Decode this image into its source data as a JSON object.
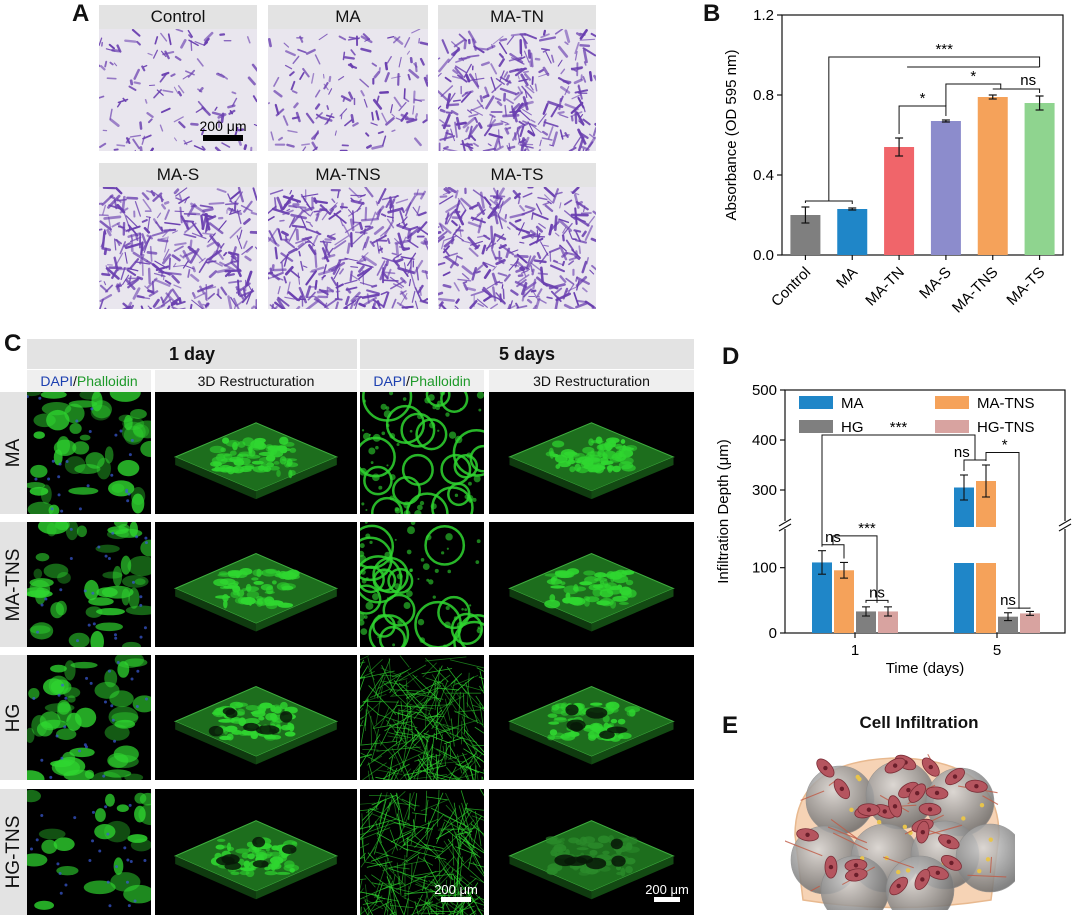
{
  "panel_letters": {
    "a": "A",
    "b": "B",
    "c": "C",
    "d": "D",
    "e": "E"
  },
  "panel_a": {
    "labels": [
      "Control",
      "MA",
      "MA-TN",
      "MA-S",
      "MA-TNS",
      "MA-TS"
    ],
    "densities": [
      0.25,
      0.32,
      0.75,
      0.85,
      0.92,
      0.82
    ],
    "scale_bar": "200 μm",
    "stain_color": "#6a3fb0"
  },
  "panel_c": {
    "time_headers": [
      "1 day",
      "5 days"
    ],
    "stain_label_a": "DAPI",
    "stain_label_sep": "/",
    "stain_label_b": "Phalloidin",
    "restructuration_label": "3D Restructuration",
    "rows": [
      "MA",
      "MA-TNS",
      "HG",
      "HG-TNS"
    ],
    "scale_bar_1": "200 μm",
    "scale_bar_2": "200 μm",
    "stain_color": "#2fd630"
  },
  "panel_e": {
    "title": "Cell Infiltration"
  },
  "chart_data": [
    {
      "type": "bar",
      "panel": "B",
      "categories": [
        "Control",
        "MA",
        "MA-TN",
        "MA-S",
        "MA-TNS",
        "MA-TS"
      ],
      "values": [
        0.2,
        0.23,
        0.54,
        0.67,
        0.79,
        0.76
      ],
      "errors": [
        0.04,
        0.005,
        0.045,
        0.005,
        0.01,
        0.035
      ],
      "colors": [
        "#7f7f7f",
        "#1f86c8",
        "#f0656a",
        "#8c8ccc",
        "#f5a25a",
        "#8fd48f"
      ],
      "ylabel": "Absorbance (OD 595 nm)",
      "ylim": [
        0,
        1.2
      ],
      "yticks": [
        0.0,
        0.4,
        0.8,
        1.2
      ],
      "significance": [
        "***",
        "*",
        "*",
        "ns"
      ]
    },
    {
      "type": "bar",
      "panel": "D",
      "categories": [
        "1",
        "5"
      ],
      "xlabel": "Time (days)",
      "ylabel": "Infiltration Depth (μm)",
      "yticks": [
        0,
        100,
        300,
        400,
        500
      ],
      "axis_break": [
        150,
        250
      ],
      "series": [
        {
          "name": "MA",
          "color": "#1f86c8",
          "values": [
            108,
            305
          ],
          "errors": [
            18,
            25
          ]
        },
        {
          "name": "MA-TNS",
          "color": "#f5a25a",
          "values": [
            96,
            318
          ],
          "errors": [
            12,
            32
          ]
        },
        {
          "name": "HG",
          "color": "#7f7f7f",
          "values": [
            33,
            25
          ],
          "errors": [
            7,
            6
          ]
        },
        {
          "name": "HG-TNS",
          "color": "#d8a3a0",
          "values": [
            33,
            30
          ],
          "errors": [
            7,
            3
          ]
        }
      ],
      "significance": [
        "***",
        "ns",
        "*",
        "ns",
        "***",
        "ns",
        "ns"
      ]
    }
  ]
}
